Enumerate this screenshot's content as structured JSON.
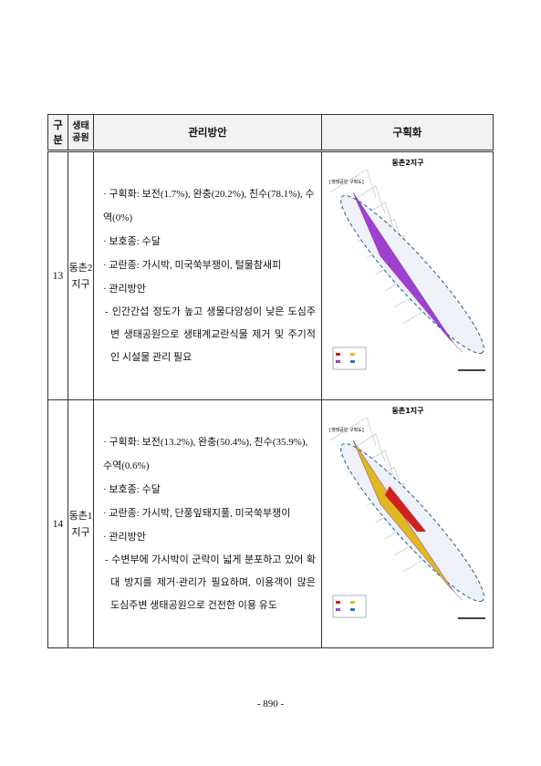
{
  "table": {
    "header": {
      "no": "구분",
      "park": [
        "생태",
        "공원"
      ],
      "plan": "관리방안",
      "zone": "구획화"
    },
    "rows": [
      {
        "no": "13",
        "park": [
          "동촌2",
          "지구"
        ],
        "items": [
          "· 구획화: 보전(1.7%), 완충(20.2%), 친수(78.1%), 수역(0%)",
          "· 보호종: 수달",
          "· 교란종: 가시박, 미국쑥부쟁이, 털물참새피",
          "· 관리방안"
        ],
        "note": "- 인간간섭 정도가 높고 생물다양성이 낮은 도심주변 생태공원으로 생태계교란식물 제거 및 주기적인 시설물 관리 필요",
        "map_title": "동촌2지구",
        "map_caption": "[생태공원 구획도]"
      },
      {
        "no": "14",
        "park": [
          "동촌1",
          "지구"
        ],
        "items": [
          "· 구획화: 보전(13.2%), 완충(50.4%), 친수(35.9%), 수역(0.6%)",
          "· 보호종: 수달",
          "· 교란종: 가시박, 단풍잎돼지풀, 미국쑥부쟁이",
          "· 관리방안"
        ],
        "note": "- 수변부에 가시박이 군락이 넓게 분포하고 있어 확대 방지를 제거·관리가 필요하며, 이용객이 많은 도심주변 생태공원으로 건전한 이용 유도",
        "map_title": "동촌1지구",
        "map_caption": "[생태공원 구획도]"
      }
    ]
  },
  "page_number": "- 890 -"
}
